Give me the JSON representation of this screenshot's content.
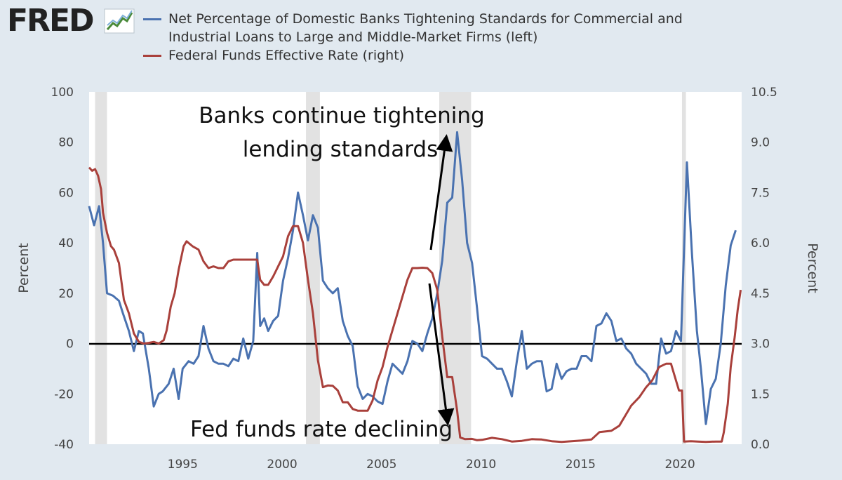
{
  "brand": {
    "name": "FRED"
  },
  "colors": {
    "background": "#e1e9f0",
    "series_1": "#4a72b0",
    "series_2": "#a9403b",
    "recession": "#e2e2e2",
    "zero_line": "#000000"
  },
  "legend": [
    {
      "lines": [
        "Net Percentage of Domestic Banks Tightening Standards for Commercial and",
        "Industrial Loans to Large and Middle-Market Firms (left)"
      ]
    },
    {
      "lines": [
        "Federal Funds Effective Rate (right)"
      ]
    }
  ],
  "chart_data": {
    "type": "line",
    "grid": false,
    "y_left": {
      "label": "Percent",
      "range": [
        -40,
        100
      ],
      "ticks": [
        "-40",
        "-20",
        "0",
        "20",
        "40",
        "60",
        "80",
        "100"
      ]
    },
    "y_right": {
      "label": "Percent",
      "range": [
        0,
        10.5
      ],
      "ticks": [
        "0.0",
        "1.5",
        "3.0",
        "4.5",
        "6.0",
        "7.5",
        "9.0",
        "10.5"
      ]
    },
    "x": {
      "range": [
        1990.3,
        2023.1
      ],
      "ticks": [
        "1995",
        "2000",
        "2005",
        "2010",
        "2015",
        "2020"
      ]
    },
    "recessions": [
      [
        1990.6,
        1991.2
      ],
      [
        2001.2,
        2001.9
      ],
      [
        2007.9,
        2009.5
      ],
      [
        2020.1,
        2020.3
      ]
    ],
    "series": [
      {
        "name": "Net Percentage of Domestic Banks Tightening Standards for Commercial and Industrial Loans to Large and Middle-Market Firms (left)",
        "axis": "left",
        "points": [
          [
            1990.3,
            54.6
          ],
          [
            1990.55,
            47
          ],
          [
            1990.8,
            54.6
          ],
          [
            1991.0,
            40
          ],
          [
            1991.2,
            20
          ],
          [
            1991.5,
            19
          ],
          [
            1991.8,
            17
          ],
          [
            1992.0,
            12
          ],
          [
            1992.3,
            5
          ],
          [
            1992.55,
            -3
          ],
          [
            1992.8,
            5
          ],
          [
            1993.0,
            4
          ],
          [
            1993.3,
            -10
          ],
          [
            1993.55,
            -25
          ],
          [
            1993.8,
            -20
          ],
          [
            1994.0,
            -19
          ],
          [
            1994.3,
            -16
          ],
          [
            1994.55,
            -10
          ],
          [
            1994.8,
            -22
          ],
          [
            1995.0,
            -10
          ],
          [
            1995.3,
            -7
          ],
          [
            1995.55,
            -8
          ],
          [
            1995.8,
            -5
          ],
          [
            1996.05,
            7
          ],
          [
            1996.3,
            -2
          ],
          [
            1996.55,
            -7
          ],
          [
            1996.8,
            -8
          ],
          [
            1997.05,
            -8
          ],
          [
            1997.3,
            -9
          ],
          [
            1997.55,
            -6
          ],
          [
            1997.8,
            -7
          ],
          [
            1998.05,
            2
          ],
          [
            1998.3,
            -6
          ],
          [
            1998.55,
            1
          ],
          [
            1998.75,
            36
          ],
          [
            1998.9,
            7
          ],
          [
            1999.1,
            10
          ],
          [
            1999.3,
            5
          ],
          [
            1999.55,
            9
          ],
          [
            1999.8,
            11
          ],
          [
            2000.05,
            25
          ],
          [
            2000.3,
            34
          ],
          [
            2000.55,
            45
          ],
          [
            2000.8,
            60
          ],
          [
            2001.05,
            51
          ],
          [
            2001.3,
            41
          ],
          [
            2001.55,
            51
          ],
          [
            2001.8,
            46
          ],
          [
            2002.05,
            25
          ],
          [
            2002.3,
            22
          ],
          [
            2002.55,
            20
          ],
          [
            2002.8,
            22
          ],
          [
            2003.05,
            9
          ],
          [
            2003.3,
            3
          ],
          [
            2003.55,
            -1
          ],
          [
            2003.8,
            -17
          ],
          [
            2004.05,
            -22
          ],
          [
            2004.3,
            -20
          ],
          [
            2004.55,
            -21
          ],
          [
            2004.8,
            -23
          ],
          [
            2005.05,
            -24
          ],
          [
            2005.3,
            -15
          ],
          [
            2005.55,
            -8
          ],
          [
            2005.8,
            -10
          ],
          [
            2006.05,
            -12
          ],
          [
            2006.3,
            -7
          ],
          [
            2006.55,
            1
          ],
          [
            2006.8,
            0
          ],
          [
            2007.05,
            -3
          ],
          [
            2007.3,
            4
          ],
          [
            2007.55,
            10
          ],
          [
            2007.8,
            20
          ],
          [
            2008.05,
            33
          ],
          [
            2008.3,
            56
          ],
          [
            2008.55,
            58
          ],
          [
            2008.8,
            84
          ],
          [
            2009.05,
            65
          ],
          [
            2009.3,
            40
          ],
          [
            2009.55,
            32
          ],
          [
            2009.8,
            14
          ],
          [
            2010.05,
            -5
          ],
          [
            2010.3,
            -6
          ],
          [
            2010.55,
            -8
          ],
          [
            2010.8,
            -10
          ],
          [
            2011.05,
            -10
          ],
          [
            2011.3,
            -15
          ],
          [
            2011.55,
            -21
          ],
          [
            2011.8,
            -7
          ],
          [
            2012.05,
            5
          ],
          [
            2012.3,
            -10
          ],
          [
            2012.55,
            -8
          ],
          [
            2012.8,
            -7
          ],
          [
            2013.05,
            -7
          ],
          [
            2013.3,
            -19
          ],
          [
            2013.55,
            -18
          ],
          [
            2013.8,
            -8
          ],
          [
            2014.05,
            -14
          ],
          [
            2014.3,
            -11
          ],
          [
            2014.55,
            -10
          ],
          [
            2014.8,
            -10
          ],
          [
            2015.05,
            -5
          ],
          [
            2015.3,
            -5
          ],
          [
            2015.55,
            -7
          ],
          [
            2015.8,
            7
          ],
          [
            2016.05,
            8
          ],
          [
            2016.3,
            12
          ],
          [
            2016.55,
            9
          ],
          [
            2016.8,
            1
          ],
          [
            2017.05,
            2
          ],
          [
            2017.3,
            -2
          ],
          [
            2017.55,
            -4
          ],
          [
            2017.8,
            -8
          ],
          [
            2018.05,
            -10
          ],
          [
            2018.3,
            -12
          ],
          [
            2018.55,
            -16
          ],
          [
            2018.8,
            -16
          ],
          [
            2019.05,
            2
          ],
          [
            2019.3,
            -4
          ],
          [
            2019.55,
            -3
          ],
          [
            2019.8,
            5
          ],
          [
            2020.05,
            1
          ],
          [
            2020.35,
            72
          ],
          [
            2020.6,
            36
          ],
          [
            2020.85,
            5
          ],
          [
            2021.05,
            -10
          ],
          [
            2021.3,
            -32
          ],
          [
            2021.55,
            -18
          ],
          [
            2021.8,
            -14
          ],
          [
            2022.05,
            0
          ],
          [
            2022.3,
            23
          ],
          [
            2022.55,
            39
          ],
          [
            2022.8,
            45
          ]
        ]
      },
      {
        "name": "Federal Funds Effective Rate (right)",
        "axis": "right",
        "points": [
          [
            1990.3,
            8.25
          ],
          [
            1990.45,
            8.15
          ],
          [
            1990.6,
            8.2
          ],
          [
            1990.75,
            8.0
          ],
          [
            1990.9,
            7.6
          ],
          [
            1991.0,
            6.9
          ],
          [
            1991.2,
            6.3
          ],
          [
            1991.4,
            5.9
          ],
          [
            1991.55,
            5.8
          ],
          [
            1991.8,
            5.4
          ],
          [
            1992.05,
            4.3
          ],
          [
            1992.3,
            3.9
          ],
          [
            1992.55,
            3.3
          ],
          [
            1992.8,
            3.05
          ],
          [
            1993.05,
            3.0
          ],
          [
            1993.3,
            3.02
          ],
          [
            1993.55,
            3.05
          ],
          [
            1993.8,
            3.0
          ],
          [
            1994.05,
            3.1
          ],
          [
            1994.2,
            3.4
          ],
          [
            1994.4,
            4.1
          ],
          [
            1994.6,
            4.5
          ],
          [
            1994.8,
            5.2
          ],
          [
            1995.05,
            5.9
          ],
          [
            1995.2,
            6.05
          ],
          [
            1995.5,
            5.9
          ],
          [
            1995.8,
            5.8
          ],
          [
            1996.05,
            5.45
          ],
          [
            1996.3,
            5.25
          ],
          [
            1996.55,
            5.3
          ],
          [
            1996.8,
            5.25
          ],
          [
            1997.05,
            5.25
          ],
          [
            1997.3,
            5.45
          ],
          [
            1997.55,
            5.5
          ],
          [
            1997.8,
            5.5
          ],
          [
            1998.05,
            5.5
          ],
          [
            1998.3,
            5.5
          ],
          [
            1998.55,
            5.5
          ],
          [
            1998.75,
            5.5
          ],
          [
            1998.9,
            4.9
          ],
          [
            1999.1,
            4.75
          ],
          [
            1999.3,
            4.75
          ],
          [
            1999.55,
            5.0
          ],
          [
            1999.8,
            5.3
          ],
          [
            2000.05,
            5.6
          ],
          [
            2000.3,
            6.2
          ],
          [
            2000.55,
            6.5
          ],
          [
            2000.8,
            6.5
          ],
          [
            2001.05,
            6.0
          ],
          [
            2001.3,
            4.9
          ],
          [
            2001.55,
            3.9
          ],
          [
            2001.8,
            2.5
          ],
          [
            2002.05,
            1.7
          ],
          [
            2002.3,
            1.75
          ],
          [
            2002.55,
            1.74
          ],
          [
            2002.8,
            1.6
          ],
          [
            2003.05,
            1.25
          ],
          [
            2003.3,
            1.25
          ],
          [
            2003.55,
            1.05
          ],
          [
            2003.8,
            1.0
          ],
          [
            2004.05,
            1.0
          ],
          [
            2004.3,
            1.0
          ],
          [
            2004.55,
            1.3
          ],
          [
            2004.8,
            1.9
          ],
          [
            2005.05,
            2.3
          ],
          [
            2005.3,
            2.9
          ],
          [
            2005.55,
            3.4
          ],
          [
            2005.8,
            3.9
          ],
          [
            2006.05,
            4.4
          ],
          [
            2006.3,
            4.9
          ],
          [
            2006.55,
            5.25
          ],
          [
            2006.8,
            5.25
          ],
          [
            2007.05,
            5.26
          ],
          [
            2007.3,
            5.25
          ],
          [
            2007.55,
            5.1
          ],
          [
            2007.8,
            4.6
          ],
          [
            2008.05,
            3.2
          ],
          [
            2008.3,
            2.0
          ],
          [
            2008.55,
            2.0
          ],
          [
            2008.8,
            1.0
          ],
          [
            2008.95,
            0.2
          ],
          [
            2009.2,
            0.15
          ],
          [
            2009.55,
            0.16
          ],
          [
            2009.8,
            0.12
          ],
          [
            2010.05,
            0.13
          ],
          [
            2010.55,
            0.19
          ],
          [
            2011.05,
            0.15
          ],
          [
            2011.55,
            0.08
          ],
          [
            2012.05,
            0.1
          ],
          [
            2012.55,
            0.15
          ],
          [
            2013.05,
            0.14
          ],
          [
            2013.55,
            0.09
          ],
          [
            2014.05,
            0.07
          ],
          [
            2014.55,
            0.09
          ],
          [
            2015.05,
            0.11
          ],
          [
            2015.55,
            0.14
          ],
          [
            2015.95,
            0.36
          ],
          [
            2016.55,
            0.4
          ],
          [
            2016.95,
            0.55
          ],
          [
            2017.3,
            0.9
          ],
          [
            2017.55,
            1.15
          ],
          [
            2017.95,
            1.4
          ],
          [
            2018.3,
            1.7
          ],
          [
            2018.6,
            1.9
          ],
          [
            2018.95,
            2.3
          ],
          [
            2019.3,
            2.4
          ],
          [
            2019.55,
            2.4
          ],
          [
            2019.75,
            2.0
          ],
          [
            2019.95,
            1.6
          ],
          [
            2020.1,
            1.6
          ],
          [
            2020.2,
            0.08
          ],
          [
            2020.55,
            0.09
          ],
          [
            2020.9,
            0.08
          ],
          [
            2021.3,
            0.07
          ],
          [
            2021.8,
            0.08
          ],
          [
            2022.1,
            0.08
          ],
          [
            2022.2,
            0.35
          ],
          [
            2022.4,
            1.2
          ],
          [
            2022.55,
            2.3
          ],
          [
            2022.75,
            3.2
          ],
          [
            2022.9,
            4.0
          ],
          [
            2023.05,
            4.6
          ]
        ]
      }
    ]
  },
  "annotations": [
    {
      "lines": [
        "Banks continue tightening",
        "lending standards"
      ]
    },
    {
      "lines": [
        "Fed funds rate declining"
      ]
    }
  ]
}
